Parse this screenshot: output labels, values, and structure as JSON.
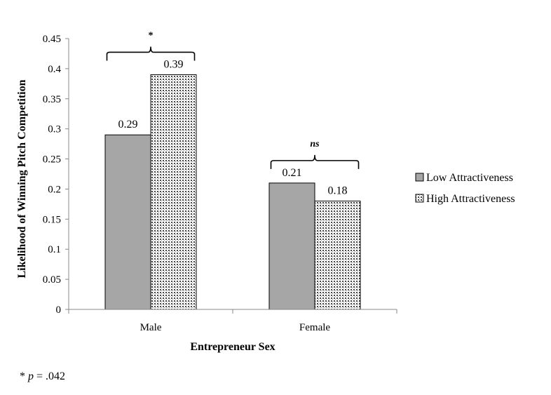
{
  "chart_data": {
    "type": "bar",
    "xlabel": "Entrepreneur Sex",
    "ylabel": "Likelihood of Winning Pitch Competition",
    "categories": [
      "Male",
      "Female"
    ],
    "series": [
      {
        "name": "Low Attractiveness",
        "values": [
          0.29,
          0.21
        ],
        "color": "#a6a6a6",
        "pattern": "solid"
      },
      {
        "name": "High Attractiveness",
        "values": [
          0.39,
          0.18
        ],
        "color": "#ffffff",
        "pattern": "dots"
      }
    ],
    "data_labels": [
      [
        "0.29",
        "0.21"
      ],
      [
        "0.39",
        "0.18"
      ]
    ],
    "ylim": [
      0,
      0.45
    ],
    "yticks": [
      0,
      0.05,
      0.1,
      0.15,
      0.2,
      0.25,
      0.3,
      0.35,
      0.4,
      0.45
    ],
    "ytick_labels": [
      "0",
      "0.05",
      "0.1",
      "0.15",
      "0.2",
      "0.25",
      "0.3",
      "0.35",
      "0.4",
      "0.45"
    ],
    "grid": false,
    "legend_position": "right",
    "annotations": [
      {
        "category": "Male",
        "text": "*"
      },
      {
        "category": "Female",
        "text": "ns"
      }
    ]
  },
  "footnote": {
    "star": "* ",
    "p": "p",
    "rest": " = .042"
  }
}
